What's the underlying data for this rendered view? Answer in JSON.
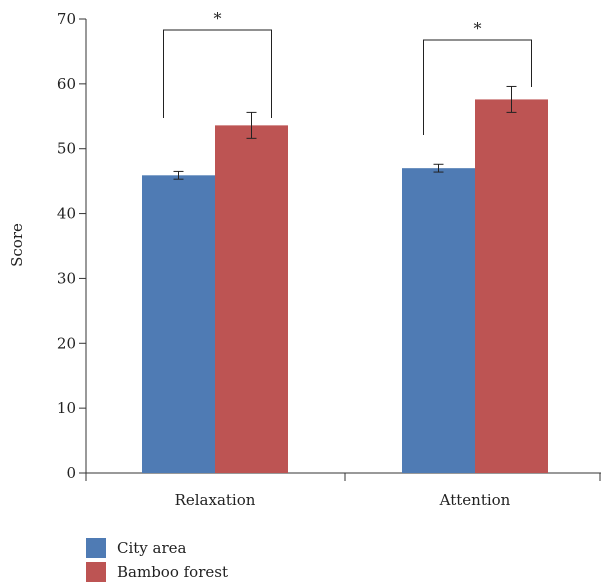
{
  "chart_data": {
    "type": "bar",
    "ylabel": "Score",
    "ylim": [
      0,
      70
    ],
    "yticks": [
      0,
      10,
      20,
      30,
      40,
      50,
      60,
      70
    ],
    "categories": [
      "Relaxation",
      "Attention"
    ],
    "series": [
      {
        "name": "City area",
        "color": "#4f7bb4",
        "values": [
          45.9,
          47.0
        ],
        "errors": [
          0.6,
          0.6
        ]
      },
      {
        "name": "Bamboo forest",
        "color": "#bd5453",
        "values": [
          53.6,
          57.6
        ],
        "errors": [
          2.0,
          2.0
        ]
      }
    ],
    "significance": [
      {
        "category": "Relaxation",
        "label": "*"
      },
      {
        "category": "Attention",
        "label": "*"
      }
    ],
    "legend": "bottom-left"
  }
}
